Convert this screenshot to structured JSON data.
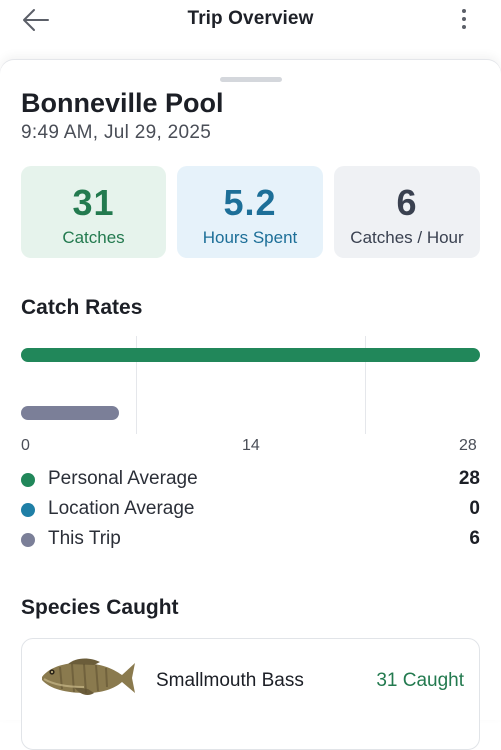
{
  "header": {
    "title": "Trip Overview"
  },
  "trip": {
    "location": "Bonneville Pool",
    "datetime": "9:49 AM, Jul 29, 2025"
  },
  "stats": [
    {
      "value": "31",
      "label": "Catches"
    },
    {
      "value": "5.2",
      "label": "Hours Spent"
    },
    {
      "value": "6",
      "label": "Catches / Hour"
    }
  ],
  "catch_rates": {
    "title": "Catch Rates",
    "ticks": [
      "0",
      "14",
      "28"
    ],
    "legend": [
      {
        "name": "Personal Average",
        "value": "28",
        "color": "#21875a"
      },
      {
        "name": "Location Average",
        "value": "0",
        "color": "#1f7fa6"
      },
      {
        "name": "This Trip",
        "value": "6",
        "color": "#7b7f98"
      }
    ]
  },
  "chart_data": {
    "type": "bar",
    "orientation": "horizontal",
    "categories": [
      "Personal Average",
      "Location Average",
      "This Trip"
    ],
    "values": [
      28,
      0,
      6
    ],
    "xlim": [
      0,
      28
    ],
    "xticks": [
      0,
      14,
      28
    ],
    "grid": true,
    "colors": [
      "#21875a",
      "#1f7fa6",
      "#7b7f98"
    ]
  },
  "species": {
    "title": "Species Caught",
    "items": [
      {
        "name": "Smallmouth Bass",
        "count": "31 Caught",
        "icon": "fish-icon"
      }
    ]
  },
  "icons": {
    "back": "arrow-left-icon",
    "menu": "more-vertical-icon"
  }
}
